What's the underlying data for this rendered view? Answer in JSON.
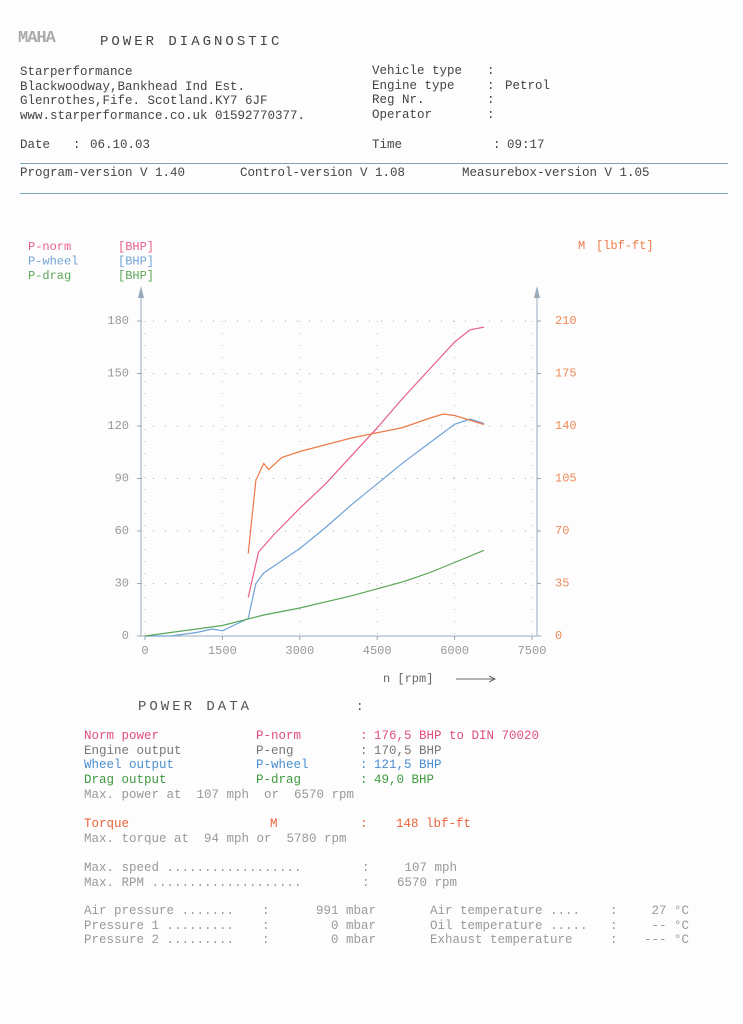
{
  "header": {
    "logo": "MAHA",
    "title": "POWER DIAGNOSTIC"
  },
  "company": [
    "Starperformance",
    "Blackwoodway,Bankhead Ind Est.",
    "Glenrothes,Fife. Scotland.KY7 6JF",
    "www.starperformance.co.uk 01592770377."
  ],
  "separator": ":",
  "vehicle": [
    {
      "label": "Vehicle type"
    },
    {
      "label": "Engine type",
      "value": "Petrol"
    },
    {
      "label": "Reg Nr."
    },
    {
      "label": "Operator"
    }
  ],
  "date": {
    "label": "Date",
    "value": "06.10.03"
  },
  "time": {
    "label": "Time",
    "value": "09:17"
  },
  "versions": [
    "Program-version V 1.40",
    "Control-version V 1.08",
    "Measurebox-version V 1.05"
  ],
  "chart_data": {
    "type": "line",
    "y_unit": "[BHP]",
    "y2_unit": "[lbf-ft]",
    "x_label": "n [rpm]",
    "xlim": [
      0,
      7500
    ],
    "xticks": [
      0,
      1500,
      3000,
      4500,
      6000,
      7500
    ],
    "ylim": [
      0,
      180
    ],
    "yticks": [
      0,
      30,
      60,
      90,
      120,
      150,
      180
    ],
    "y2lim": [
      0,
      210
    ],
    "y2ticks": [
      0,
      35,
      70,
      105,
      140,
      175,
      210
    ],
    "grid": true,
    "series": [
      {
        "name": "P-norm",
        "color": "#e8608a",
        "x": [
          2000,
          2200,
          2500,
          3000,
          3500,
          4000,
          4500,
          5000,
          5500,
          6000,
          6300,
          6570
        ],
        "values": [
          22,
          48,
          58,
          73,
          87,
          103,
          119,
          136,
          152,
          168,
          175,
          176.5
        ]
      },
      {
        "name": "P-wheel",
        "color": "#6fa3d8",
        "x": [
          0,
          500,
          1000,
          1300,
          1500,
          2000,
          2150,
          2300,
          2500,
          3000,
          3500,
          4000,
          4500,
          5000,
          5500,
          6000,
          6300,
          6570
        ],
        "values": [
          0,
          0,
          2,
          4,
          3,
          10,
          30,
          36,
          40,
          50,
          62,
          75,
          87,
          99,
          110,
          121,
          124,
          121.5
        ]
      },
      {
        "name": "P-drag",
        "color": "#5aa65a",
        "x": [
          0,
          1500,
          2300,
          3000,
          4000,
          4500,
          5000,
          5500,
          6000,
          6570
        ],
        "values": [
          0,
          6,
          12,
          16,
          23,
          27,
          31,
          36,
          42,
          49
        ]
      },
      {
        "name": "M",
        "color": "#ee7a4a",
        "axis": "y2",
        "x": [
          2000,
          2150,
          2300,
          2400,
          2650,
          3000,
          4000,
          5000,
          5500,
          5780,
          6000,
          6570
        ],
        "values": [
          55,
          104,
          115,
          111,
          119,
          123,
          132,
          139,
          145,
          148,
          147,
          141
        ]
      }
    ]
  },
  "power_data": {
    "title": "POWER DATA",
    "outputs": [
      {
        "label": "Norm power",
        "symbol": "P-norm",
        "value": "176,5 BHP to DIN 70020",
        "color": "#e0507a"
      },
      {
        "label": "Engine output",
        "symbol": "P-eng",
        "value": "170,5 BHP",
        "color": "#777777"
      },
      {
        "label": "Wheel output",
        "symbol": "P-wheel",
        "value": "121,5 BHP",
        "color": "#4b8fd0"
      },
      {
        "label": "Drag output",
        "symbol": "P-drag",
        "value": "49,0 BHP",
        "color": "#3f9a3f"
      }
    ],
    "max_power": "Max. power at  107 mph  or  6570 rpm",
    "torque": {
      "label": "Torque",
      "symbol": "M",
      "value": "148 lbf-ft",
      "color": "#e8643a"
    },
    "max_torque": "Max. torque at  94 mph or  5780 rpm",
    "max": [
      {
        "label": "Max. speed ..................",
        "value": "107 mph"
      },
      {
        "label": "Max. RPM ....................",
        "value": "6570 rpm"
      }
    ],
    "conditions": [
      {
        "label": "Air pressure .......",
        "value": "991 mbar",
        "label2": "Air temperature ....",
        "value2": "27 °C"
      },
      {
        "label": "Pressure 1 .........",
        "value": "0 mbar",
        "label2": "Oil temperature .....",
        "value2": "-- °C"
      },
      {
        "label": "Pressure 2 .........",
        "value": "0 mbar",
        "label2": "Exhaust temperature",
        "value2": "--- °C"
      }
    ]
  }
}
